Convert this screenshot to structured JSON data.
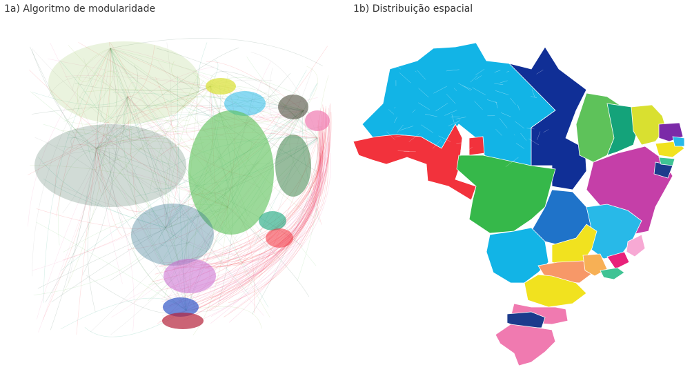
{
  "panels": {
    "a": {
      "title": "1a) Algoritmo de modularidade"
    },
    "b": {
      "title": "1b) Distribuição espacial"
    }
  },
  "palette": {
    "amazon_blue": "#12b4e6",
    "red": "#f2323c",
    "dark_blue": "#102f96",
    "green": "#36b84a",
    "mid_blue": "#1f73c9",
    "light_green": "#5ec25a",
    "teal_green": "#14a37a",
    "lime": "#d9e030",
    "purple": "#7b2aa8",
    "magenta": "#c53fa8",
    "sky": "#28b9e8",
    "yellow": "#f1e21f",
    "salmon": "#f79868",
    "orange": "#f7b055",
    "pink": "#f07ab0",
    "hot_pink": "#e8227a",
    "navy": "#1c3b8c",
    "light_pink": "#f7a9d4",
    "mint": "#3fc394",
    "olive_edge": "#8abf4a",
    "dark_edge": "#2d5a44",
    "grey_edge": "#9a9a9a"
  }
}
